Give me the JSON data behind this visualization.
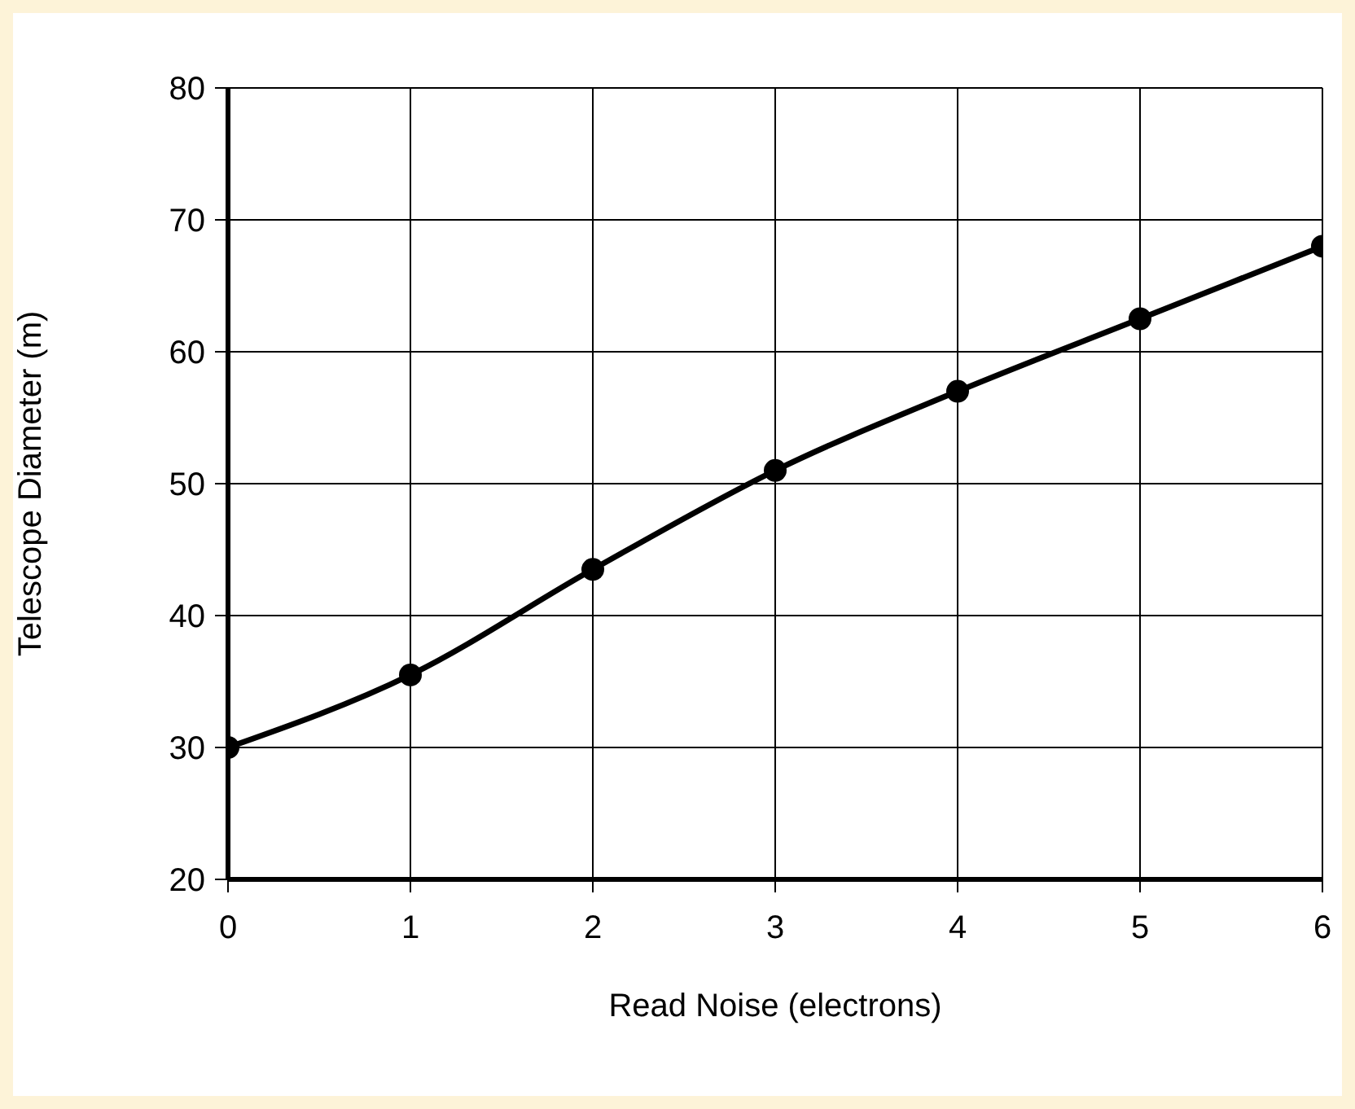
{
  "chart_data": {
    "type": "line",
    "xlabel": "Read Noise (electrons)",
    "ylabel": "Telescope Diameter (m)",
    "x": [
      0,
      1,
      2,
      3,
      4,
      5,
      6
    ],
    "series": [
      {
        "color": "#000000",
        "values": [
          30,
          35.5,
          43.5,
          51,
          57,
          62.5,
          68
        ]
      }
    ],
    "xlim": [
      0,
      6
    ],
    "xticks": [
      0,
      1,
      2,
      3,
      4,
      5,
      6
    ],
    "ylim": [
      20,
      80
    ],
    "yticks": [
      20,
      30,
      40,
      50,
      60,
      70,
      80
    ],
    "grid": true,
    "marker": "circle",
    "line_style": "solid"
  }
}
